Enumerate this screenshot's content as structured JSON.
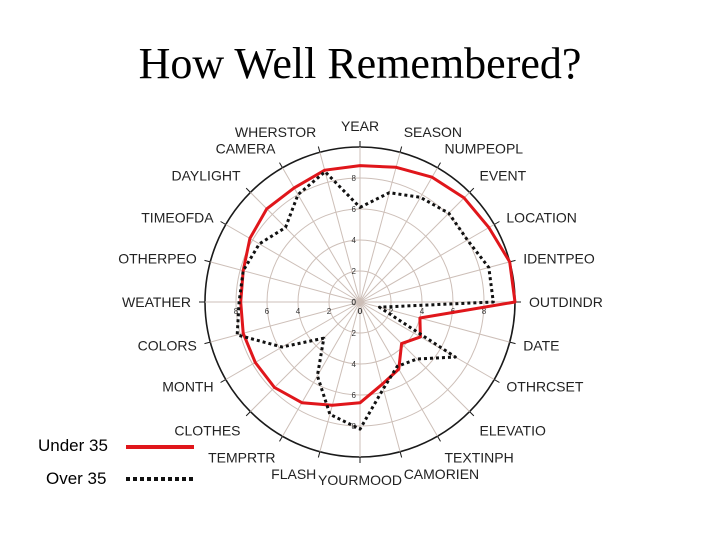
{
  "title": "How Well Remembered?",
  "legend": {
    "items": [
      {
        "label": "Under 35",
        "color": "#e0161b",
        "style": "solid"
      },
      {
        "label": "Over 35",
        "color": "#111111",
        "style": "dotted"
      }
    ]
  },
  "chart_data": {
    "type": "radar",
    "title": "How Well Remembered?",
    "rlim": [
      0,
      10
    ],
    "r_ticks": [
      2,
      4,
      6,
      8
    ],
    "tick_axes": [
      "YEAR",
      "OUTDINDR",
      "YOURMOOD",
      "WEATHER"
    ],
    "grid": true,
    "legend_position": "bottom-left",
    "categories": [
      "YEAR",
      "SEASON",
      "NUMPEOPL",
      "EVENT",
      "LOCATION",
      "IDENTPEO",
      "OUTDINDR",
      "DATE",
      "OTHRCSET",
      "ELEVATIO",
      "TEXTINPH",
      "CAMORIEN",
      "YOURMOOD",
      "FLASH",
      "TEMPRTR",
      "CLOTHES",
      "MONTH",
      "COLORS",
      "WEATHER",
      "OTHERPEO",
      "TIMEOFDA",
      "DAYLIGHT",
      "CAMERA",
      "WHERSTOR"
    ],
    "series": [
      {
        "name": "Under 35",
        "color": "#e0161b",
        "style": "solid",
        "values": [
          8.8,
          9.0,
          9.3,
          9.5,
          9.6,
          10.0,
          10.0,
          4.0,
          4.5,
          3.8,
          5.0,
          5.5,
          6.5,
          6.9,
          7.5,
          7.8,
          7.8,
          7.8,
          7.7,
          7.8,
          8.2,
          8.5,
          8.5,
          8.8
        ],
        "note": ""
      },
      {
        "name": "Over 35",
        "color": "#111111",
        "style": "dotted",
        "values": [
          6.1,
          7.3,
          7.8,
          8.1,
          8.0,
          8.6,
          8.6,
          1.3,
          7.1,
          5.2,
          4.8,
          5.8,
          8.2,
          7.5,
          5.5,
          3.3,
          5.8,
          8.2,
          7.8,
          7.8,
          7.5,
          6.8,
          8.0,
          8.7
        ]
      }
    ]
  }
}
